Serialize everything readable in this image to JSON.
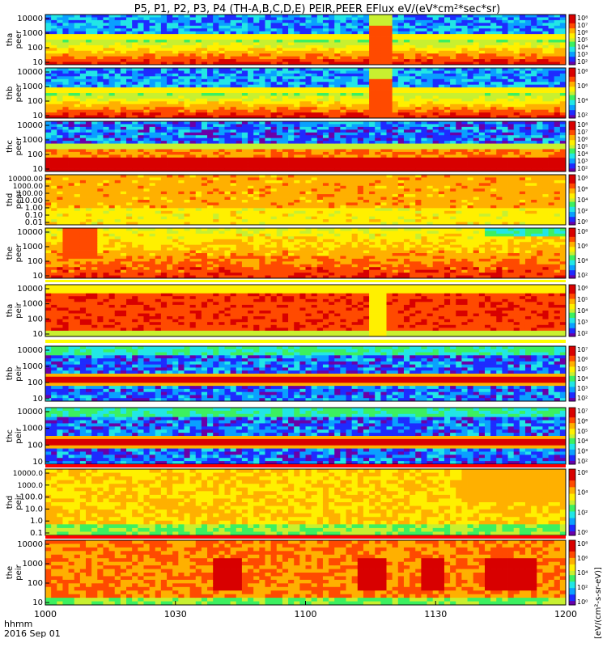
{
  "chart_data": {
    "type": "heatmap",
    "title": "P5, P1, P2, P3, P4 (TH-A,B,C,D,E) PEIR,PEER EFlux eV/(eV*cm²*sec*sr)",
    "title_pre": "P5, P1, P2, P3, P4 (TH-A,B,C,D,E) PEIR,PEER EFlux eV/(eV*cm",
    "title_sup": "2",
    "title_post": "*sec*sr)",
    "xlabel": "hhmm",
    "date_label": "2016 Sep 01",
    "xlim": [
      "1000",
      "1200"
    ],
    "x_ticks": [
      "1000",
      "1030",
      "1100",
      "1130",
      "1200"
    ],
    "colorbar_label": "[eV/(cm²-s-sr-eV)]",
    "panels": [
      {
        "probe": "tha",
        "species": "peer",
        "label_top": "tha",
        "label_bottom": "peer",
        "yticks": [
          "10",
          "100",
          "1000",
          "10000"
        ],
        "cbar_ticks": [
          "10²",
          "10³",
          "10⁴",
          "10⁵",
          "10⁶",
          "10⁷",
          "10⁸"
        ],
        "pattern": "steady"
      },
      {
        "probe": "thb",
        "species": "peer",
        "label_top": "thb",
        "label_bottom": "peer",
        "yticks": [
          "10",
          "100",
          "1000",
          "10000"
        ],
        "cbar_ticks": [
          "10²",
          "10⁴",
          "10⁶",
          "10⁸"
        ],
        "pattern": "steady"
      },
      {
        "probe": "thc",
        "species": "peer",
        "label_top": "thc",
        "label_bottom": "peer",
        "yticks": [
          "10",
          "100",
          "1000",
          "10000"
        ],
        "cbar_ticks": [
          "10²",
          "10³",
          "10⁴",
          "10⁵",
          "10⁶",
          "10⁷",
          "10⁸"
        ],
        "pattern": "low"
      },
      {
        "probe": "thd",
        "species": "peer",
        "label_top": "thd",
        "label_bottom": "peer",
        "yticks": [
          "0.01",
          "0.10",
          "1.00",
          "10.00",
          "100.00",
          "1000.00",
          "10000.00"
        ],
        "cbar_ticks": [
          "10⁰",
          "10²",
          "10⁴",
          "10⁶",
          "10⁸"
        ],
        "pattern": "flat"
      },
      {
        "probe": "the",
        "species": "peer",
        "label_top": "the",
        "label_bottom": "peer",
        "yticks": [
          "10",
          "100",
          "1000",
          "10000"
        ],
        "cbar_ticks": [
          "10²",
          "10⁴",
          "10⁶",
          "10⁸"
        ],
        "pattern": "active"
      },
      {
        "probe": "tha",
        "species": "peir",
        "label_top": "tha",
        "label_bottom": "peir",
        "yticks": [
          "10",
          "100",
          "1000",
          "10000"
        ],
        "cbar_ticks": [
          "10²",
          "10³",
          "10⁴",
          "10⁵",
          "10⁶"
        ],
        "pattern": "ionA"
      },
      {
        "probe": "thb",
        "species": "peir",
        "label_top": "thb",
        "label_bottom": "peir",
        "yticks": [
          "10",
          "100",
          "1000",
          "10000"
        ],
        "cbar_ticks": [
          "10²",
          "10³",
          "10⁴",
          "10⁵",
          "10⁶",
          "10⁷"
        ],
        "pattern": "ionB"
      },
      {
        "probe": "thc",
        "species": "peir",
        "label_top": "thc",
        "label_bottom": "peir",
        "yticks": [
          "10",
          "100",
          "1000",
          "10000"
        ],
        "cbar_ticks": [
          "10²",
          "10³",
          "10⁴",
          "10⁵",
          "10⁶",
          "10⁷"
        ],
        "pattern": "ionB"
      },
      {
        "probe": "thd",
        "species": "peir",
        "label_top": "thd",
        "label_bottom": "peir",
        "yticks": [
          "0.1",
          "1.0",
          "10.0",
          "100.0",
          "1000.0",
          "10000.0"
        ],
        "cbar_ticks": [
          "10⁰",
          "10²",
          "10⁴",
          "10⁶"
        ],
        "pattern": "ionD"
      },
      {
        "probe": "the",
        "species": "peir",
        "label_top": "the",
        "label_bottom": "peir",
        "yticks": [
          "10",
          "100",
          "1000",
          "10000"
        ],
        "cbar_ticks": [
          "10⁰",
          "10²",
          "10⁴",
          "10⁶",
          "10⁸"
        ],
        "pattern": "ionE"
      }
    ]
  },
  "colors": {
    "colormap": [
      "#ffffff",
      "#6a00a8",
      "#1e2bff",
      "#0aa0ff",
      "#22e6e6",
      "#3cf060",
      "#c8f030",
      "#fff000",
      "#ffb000",
      "#ff4a00",
      "#d80000"
    ],
    "frame": "#000000"
  }
}
